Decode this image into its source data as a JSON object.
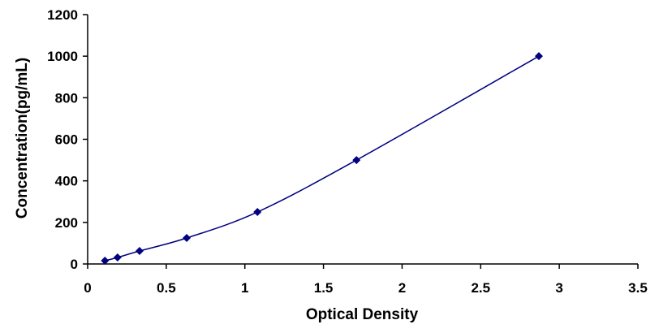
{
  "chart_data": {
    "type": "scatter",
    "title": "",
    "xlabel": "Optical Density",
    "ylabel": "Concentration(pg/mL)",
    "xlim": [
      0,
      3.5
    ],
    "ylim": [
      0,
      1200
    ],
    "x_ticks": [
      0,
      0.5,
      1,
      1.5,
      2,
      2.5,
      3,
      3.5
    ],
    "x_tick_labels": [
      "0",
      "0.5",
      "1",
      "1.5",
      "2",
      "2.5",
      "3",
      "3.5"
    ],
    "y_ticks": [
      0,
      200,
      400,
      600,
      800,
      1000,
      1200
    ],
    "y_tick_labels": [
      "0",
      "200",
      "400",
      "600",
      "800",
      "1000",
      "1200"
    ],
    "grid": false,
    "legend": "none",
    "series": [
      {
        "x": [
          0.11,
          0.19,
          0.33,
          0.63,
          1.08,
          1.71,
          2.87
        ],
        "y": [
          15.625,
          31.25,
          62.5,
          125,
          250,
          500,
          1000
        ],
        "marker": "diamond",
        "line": "smooth",
        "color": "#000080"
      }
    ]
  }
}
